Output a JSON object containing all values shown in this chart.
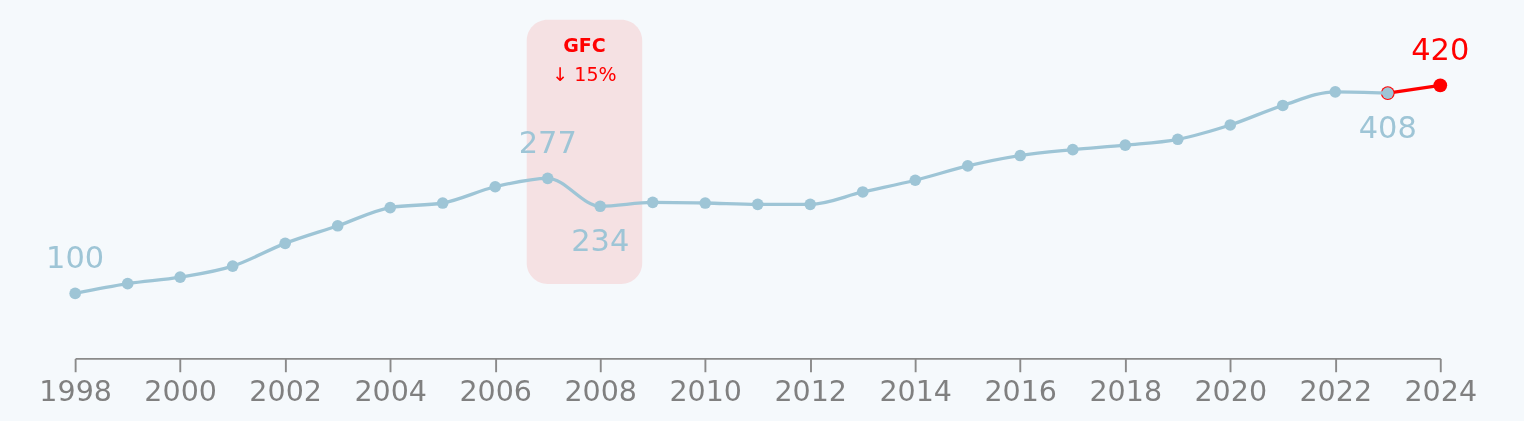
{
  "chart_data": {
    "type": "line",
    "x": [
      1998,
      1999,
      2000,
      2001,
      2002,
      2003,
      2004,
      2005,
      2006,
      2007,
      2008,
      2009,
      2010,
      2011,
      2012,
      2013,
      2014,
      2015,
      2016,
      2017,
      2018,
      2019,
      2020,
      2021,
      2022,
      2023
    ],
    "series": [
      {
        "color": "#9ec5d6",
        "values": [
          100,
          115,
          125,
          142,
          177,
          204,
          232,
          239,
          264,
          277,
          234,
          240,
          239,
          237,
          237,
          256,
          274,
          296,
          312,
          321,
          328,
          337,
          359,
          389,
          410,
          408
        ],
        "value_labels": [
          "100",
          null,
          null,
          null,
          null,
          null,
          null,
          null,
          null,
          "277",
          "234",
          null,
          null,
          null,
          null,
          null,
          null,
          null,
          null,
          null,
          null,
          null,
          null,
          null,
          null,
          "408"
        ]
      },
      {
        "color": "#ff0000",
        "x": [
          2023,
          2024
        ],
        "values": [
          408,
          420
        ],
        "value_labels": [
          null,
          "420"
        ]
      }
    ],
    "xlim": [
      1998,
      2024
    ],
    "xticks": [
      1998,
      2000,
      2002,
      2004,
      2006,
      2008,
      2010,
      2012,
      2014,
      2016,
      2018,
      2020,
      2022,
      2024
    ],
    "bands": [
      {
        "axis": "x",
        "from": 2006.6,
        "to": 2008.8,
        "label": "GFC\n↓ 15%",
        "color": "#f5e1e3"
      }
    ],
    "marker": "circle",
    "grid": false
  }
}
